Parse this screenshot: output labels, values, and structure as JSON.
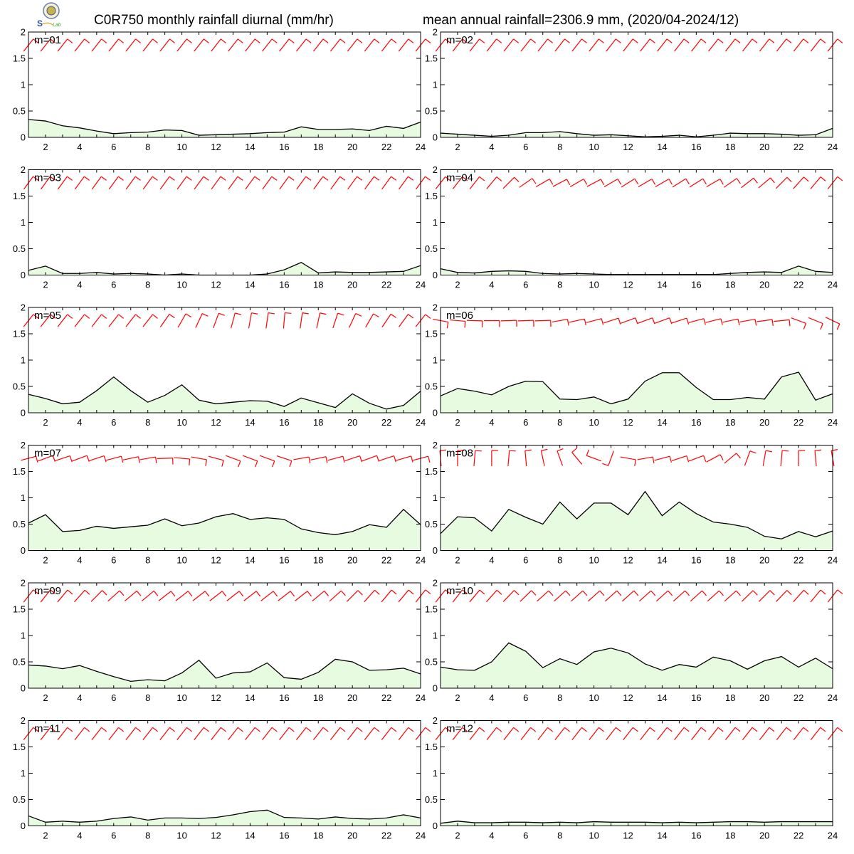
{
  "header": {
    "title_left": "C0R750 monthly rainfall diurnal (mm/hr)",
    "title_right": "mean annual rainfall=2306.9 mm, (2020/04-2024/12)"
  },
  "colors": {
    "area_fill": "#e6fbe0",
    "line": "#000000",
    "wind": "#ff0000"
  },
  "chart_data": [
    {
      "type": "area",
      "label": "m=01",
      "x": [
        1,
        2,
        3,
        4,
        5,
        6,
        7,
        8,
        9,
        10,
        11,
        12,
        13,
        14,
        15,
        16,
        17,
        18,
        19,
        20,
        21,
        22,
        23,
        24
      ],
      "xticks": [
        2,
        4,
        6,
        8,
        10,
        12,
        14,
        16,
        18,
        20,
        22,
        24
      ],
      "ylim": [
        0,
        2
      ],
      "yticks": [
        0,
        0.5,
        1,
        1.5,
        2
      ],
      "values": [
        0.34,
        0.31,
        0.22,
        0.18,
        0.12,
        0.07,
        0.09,
        0.1,
        0.14,
        0.13,
        0.04,
        0.05,
        0.06,
        0.07,
        0.09,
        0.1,
        0.2,
        0.15,
        0.15,
        0.16,
        0.13,
        0.21,
        0.17,
        0.29
      ],
      "wind_dir_deg": [
        38,
        38,
        38,
        38,
        38,
        38,
        38,
        38,
        38,
        38,
        38,
        38,
        38,
        38,
        38,
        38,
        38,
        38,
        38,
        38,
        38,
        38,
        38,
        38
      ]
    },
    {
      "type": "area",
      "label": "m=02",
      "x": [
        1,
        2,
        3,
        4,
        5,
        6,
        7,
        8,
        9,
        10,
        11,
        12,
        13,
        14,
        15,
        16,
        17,
        18,
        19,
        20,
        21,
        22,
        23,
        24
      ],
      "xticks": [
        2,
        4,
        6,
        8,
        10,
        12,
        14,
        16,
        18,
        20,
        22,
        24
      ],
      "ylim": [
        0,
        2
      ],
      "yticks": [
        0,
        0.5,
        1,
        1.5,
        2
      ],
      "values": [
        0.08,
        0.06,
        0.04,
        0.02,
        0.04,
        0.09,
        0.09,
        0.11,
        0.07,
        0.04,
        0.05,
        0.03,
        0.01,
        0.02,
        0.04,
        0.01,
        0.04,
        0.08,
        0.07,
        0.07,
        0.06,
        0.04,
        0.05,
        0.17
      ],
      "wind_dir_deg": [
        38,
        38,
        38,
        38,
        38,
        38,
        38,
        38,
        38,
        38,
        38,
        38,
        38,
        38,
        38,
        38,
        38,
        38,
        38,
        38,
        38,
        38,
        38,
        38
      ]
    },
    {
      "type": "area",
      "label": "m=03",
      "x": [
        1,
        2,
        3,
        4,
        5,
        6,
        7,
        8,
        9,
        10,
        11,
        12,
        13,
        14,
        15,
        16,
        17,
        18,
        19,
        20,
        21,
        22,
        23,
        24
      ],
      "xticks": [
        2,
        4,
        6,
        8,
        10,
        12,
        14,
        16,
        18,
        20,
        22,
        24
      ],
      "ylim": [
        0,
        2
      ],
      "yticks": [
        0,
        0.5,
        1,
        1.5,
        2
      ],
      "values": [
        0.09,
        0.17,
        0.03,
        0.03,
        0.05,
        0.02,
        0.03,
        0.02,
        0.0,
        0.02,
        0.0,
        0.0,
        0.0,
        0.0,
        0.02,
        0.1,
        0.24,
        0.04,
        0.06,
        0.05,
        0.05,
        0.06,
        0.07,
        0.18
      ],
      "wind_dir_deg": [
        36,
        36,
        36,
        36,
        36,
        36,
        36,
        36,
        36,
        36,
        36,
        36,
        36,
        36,
        36,
        36,
        36,
        36,
        36,
        36,
        36,
        36,
        36,
        36
      ]
    },
    {
      "type": "area",
      "label": "m=04",
      "x": [
        1,
        2,
        3,
        4,
        5,
        6,
        7,
        8,
        9,
        10,
        11,
        12,
        13,
        14,
        15,
        16,
        17,
        18,
        19,
        20,
        21,
        22,
        23,
        24
      ],
      "xticks": [
        2,
        4,
        6,
        8,
        10,
        12,
        14,
        16,
        18,
        20,
        22,
        24
      ],
      "ylim": [
        0,
        2
      ],
      "yticks": [
        0,
        0.5,
        1,
        1.5,
        2
      ],
      "values": [
        0.12,
        0.05,
        0.04,
        0.07,
        0.08,
        0.07,
        0.03,
        0.02,
        0.03,
        0.02,
        0.01,
        0.01,
        0.01,
        0.01,
        0.01,
        0.01,
        0.01,
        0.03,
        0.05,
        0.06,
        0.05,
        0.17,
        0.07,
        0.05
      ],
      "wind_dir_deg": [
        38,
        38,
        38,
        40,
        45,
        55,
        60,
        62,
        60,
        62,
        60,
        58,
        60,
        60,
        58,
        58,
        60,
        55,
        52,
        50,
        45,
        42,
        40,
        38
      ]
    },
    {
      "type": "area",
      "label": "m=05",
      "x": [
        1,
        2,
        3,
        4,
        5,
        6,
        7,
        8,
        9,
        10,
        11,
        12,
        13,
        14,
        15,
        16,
        17,
        18,
        19,
        20,
        21,
        22,
        23,
        24
      ],
      "xticks": [
        2,
        4,
        6,
        8,
        10,
        12,
        14,
        16,
        18,
        20,
        22,
        24
      ],
      "ylim": [
        0,
        2
      ],
      "yticks": [
        0,
        0.5,
        1,
        1.5,
        2
      ],
      "values": [
        0.35,
        0.27,
        0.17,
        0.2,
        0.42,
        0.68,
        0.42,
        0.2,
        0.33,
        0.53,
        0.24,
        0.17,
        0.2,
        0.23,
        0.22,
        0.12,
        0.28,
        0.19,
        0.1,
        0.36,
        0.18,
        0.07,
        0.14,
        0.41
      ],
      "wind_dir_deg": [
        38,
        38,
        38,
        38,
        38,
        38,
        38,
        38,
        35,
        30,
        25,
        20,
        15,
        10,
        8,
        5,
        8,
        12,
        18,
        25,
        30,
        34,
        36,
        38
      ]
    },
    {
      "type": "area",
      "label": "m=06",
      "x": [
        1,
        2,
        3,
        4,
        5,
        6,
        7,
        8,
        9,
        10,
        11,
        12,
        13,
        14,
        15,
        16,
        17,
        18,
        19,
        20,
        21,
        22,
        23,
        24
      ],
      "xticks": [
        2,
        4,
        6,
        8,
        10,
        12,
        14,
        16,
        18,
        20,
        22,
        24
      ],
      "ylim": [
        0,
        2
      ],
      "yticks": [
        0,
        0.5,
        1,
        1.5,
        2
      ],
      "values": [
        0.32,
        0.46,
        0.41,
        0.34,
        0.5,
        0.6,
        0.59,
        0.26,
        0.25,
        0.3,
        0.17,
        0.26,
        0.6,
        0.76,
        0.76,
        0.48,
        0.25,
        0.25,
        0.29,
        0.26,
        0.68,
        0.77,
        0.24,
        0.36
      ],
      "wind_dir_deg": [
        100,
        95,
        92,
        90,
        88,
        88,
        88,
        80,
        78,
        75,
        72,
        70,
        70,
        70,
        72,
        75,
        76,
        78,
        80,
        82,
        84,
        110,
        112,
        115
      ]
    },
    {
      "type": "area",
      "label": "m=07",
      "x": [
        1,
        2,
        3,
        4,
        5,
        6,
        7,
        8,
        9,
        10,
        11,
        12,
        13,
        14,
        15,
        16,
        17,
        18,
        19,
        20,
        21,
        22,
        23,
        24
      ],
      "xticks": [
        2,
        4,
        6,
        8,
        10,
        12,
        14,
        16,
        18,
        20,
        22,
        24
      ],
      "ylim": [
        0,
        2
      ],
      "yticks": [
        0,
        0.5,
        1,
        1.5,
        2
      ],
      "values": [
        0.52,
        0.68,
        0.36,
        0.38,
        0.46,
        0.42,
        0.45,
        0.48,
        0.6,
        0.47,
        0.52,
        0.64,
        0.7,
        0.59,
        0.62,
        0.59,
        0.41,
        0.34,
        0.3,
        0.36,
        0.49,
        0.44,
        0.78,
        0.49
      ],
      "wind_dir_deg": [
        75,
        70,
        72,
        70,
        72,
        75,
        78,
        80,
        88,
        95,
        100,
        105,
        110,
        110,
        110,
        108,
        80,
        78,
        75,
        72,
        70,
        72,
        74,
        75
      ]
    },
    {
      "type": "area",
      "label": "m=08",
      "x": [
        1,
        2,
        3,
        4,
        5,
        6,
        7,
        8,
        9,
        10,
        11,
        12,
        13,
        14,
        15,
        16,
        17,
        18,
        19,
        20,
        21,
        22,
        23,
        24
      ],
      "xticks": [
        2,
        4,
        6,
        8,
        10,
        12,
        14,
        16,
        18,
        20,
        22,
        24
      ],
      "ylim": [
        0,
        2
      ],
      "yticks": [
        0,
        0.5,
        1,
        1.5,
        2
      ],
      "values": [
        0.32,
        0.64,
        0.62,
        0.37,
        0.78,
        0.63,
        0.5,
        0.92,
        0.6,
        0.9,
        0.9,
        0.68,
        1.12,
        0.66,
        0.92,
        0.7,
        0.54,
        0.5,
        0.44,
        0.27,
        0.22,
        0.36,
        0.26,
        0.37
      ],
      "wind_dir_deg": [
        355,
        0,
        5,
        0,
        5,
        355,
        348,
        340,
        320,
        290,
        200,
        100,
        80,
        75,
        72,
        70,
        62,
        50,
        20,
        10,
        5,
        0,
        355,
        350
      ]
    },
    {
      "type": "area",
      "label": "m=09",
      "x": [
        1,
        2,
        3,
        4,
        5,
        6,
        7,
        8,
        9,
        10,
        11,
        12,
        13,
        14,
        15,
        16,
        17,
        18,
        19,
        20,
        21,
        22,
        23,
        24
      ],
      "xticks": [
        2,
        4,
        6,
        8,
        10,
        12,
        14,
        16,
        18,
        20,
        22,
        24
      ],
      "ylim": [
        0,
        2
      ],
      "yticks": [
        0,
        0.5,
        1,
        1.5,
        2
      ],
      "values": [
        0.44,
        0.42,
        0.37,
        0.43,
        0.32,
        0.22,
        0.13,
        0.16,
        0.14,
        0.29,
        0.53,
        0.19,
        0.29,
        0.31,
        0.48,
        0.2,
        0.17,
        0.3,
        0.55,
        0.5,
        0.34,
        0.35,
        0.38,
        0.27
      ],
      "wind_dir_deg": [
        38,
        38,
        40,
        42,
        45,
        48,
        50,
        50,
        52,
        52,
        52,
        52,
        52,
        52,
        52,
        52,
        52,
        50,
        48,
        45,
        42,
        40,
        40,
        38
      ]
    },
    {
      "type": "area",
      "label": "m=10",
      "x": [
        1,
        2,
        3,
        4,
        5,
        6,
        7,
        8,
        9,
        10,
        11,
        12,
        13,
        14,
        15,
        16,
        17,
        18,
        19,
        20,
        21,
        22,
        23,
        24
      ],
      "xticks": [
        2,
        4,
        6,
        8,
        10,
        12,
        14,
        16,
        18,
        20,
        22,
        24
      ],
      "ylim": [
        0,
        2
      ],
      "yticks": [
        0,
        0.5,
        1,
        1.5,
        2
      ],
      "values": [
        0.4,
        0.35,
        0.34,
        0.5,
        0.86,
        0.7,
        0.39,
        0.56,
        0.45,
        0.69,
        0.76,
        0.67,
        0.46,
        0.34,
        0.45,
        0.4,
        0.59,
        0.52,
        0.36,
        0.52,
        0.6,
        0.4,
        0.57,
        0.37
      ],
      "wind_dir_deg": [
        38,
        38,
        40,
        42,
        44,
        46,
        48,
        48,
        48,
        48,
        48,
        48,
        48,
        48,
        48,
        48,
        48,
        48,
        46,
        45,
        44,
        42,
        40,
        38
      ]
    },
    {
      "type": "area",
      "label": "m=11",
      "x": [
        1,
        2,
        3,
        4,
        5,
        6,
        7,
        8,
        9,
        10,
        11,
        12,
        13,
        14,
        15,
        16,
        17,
        18,
        19,
        20,
        21,
        22,
        23,
        24
      ],
      "xticks": [
        2,
        4,
        6,
        8,
        10,
        12,
        14,
        16,
        18,
        20,
        22,
        24
      ],
      "ylim": [
        0,
        2
      ],
      "yticks": [
        0,
        0.5,
        1,
        1.5,
        2
      ],
      "values": [
        0.19,
        0.07,
        0.09,
        0.07,
        0.09,
        0.14,
        0.17,
        0.11,
        0.15,
        0.15,
        0.14,
        0.16,
        0.21,
        0.27,
        0.3,
        0.16,
        0.15,
        0.13,
        0.17,
        0.14,
        0.13,
        0.15,
        0.21,
        0.15
      ],
      "wind_dir_deg": [
        38,
        38,
        38,
        38,
        38,
        38,
        38,
        38,
        38,
        38,
        38,
        38,
        38,
        38,
        38,
        38,
        38,
        38,
        38,
        38,
        38,
        38,
        38,
        38
      ]
    },
    {
      "type": "area",
      "label": "m=12",
      "x": [
        1,
        2,
        3,
        4,
        5,
        6,
        7,
        8,
        9,
        10,
        11,
        12,
        13,
        14,
        15,
        16,
        17,
        18,
        19,
        20,
        21,
        22,
        23,
        24
      ],
      "xticks": [
        2,
        4,
        6,
        8,
        10,
        12,
        14,
        16,
        18,
        20,
        22,
        24
      ],
      "ylim": [
        0,
        2
      ],
      "yticks": [
        0,
        0.5,
        1,
        1.5,
        2
      ],
      "values": [
        0.05,
        0.09,
        0.06,
        0.06,
        0.07,
        0.07,
        0.06,
        0.07,
        0.06,
        0.08,
        0.07,
        0.07,
        0.07,
        0.06,
        0.07,
        0.06,
        0.07,
        0.08,
        0.08,
        0.07,
        0.08,
        0.08,
        0.08,
        0.08
      ],
      "wind_dir_deg": [
        38,
        38,
        38,
        38,
        38,
        38,
        38,
        38,
        38,
        38,
        38,
        38,
        38,
        38,
        38,
        38,
        38,
        38,
        38,
        38,
        38,
        38,
        38,
        38
      ]
    }
  ]
}
